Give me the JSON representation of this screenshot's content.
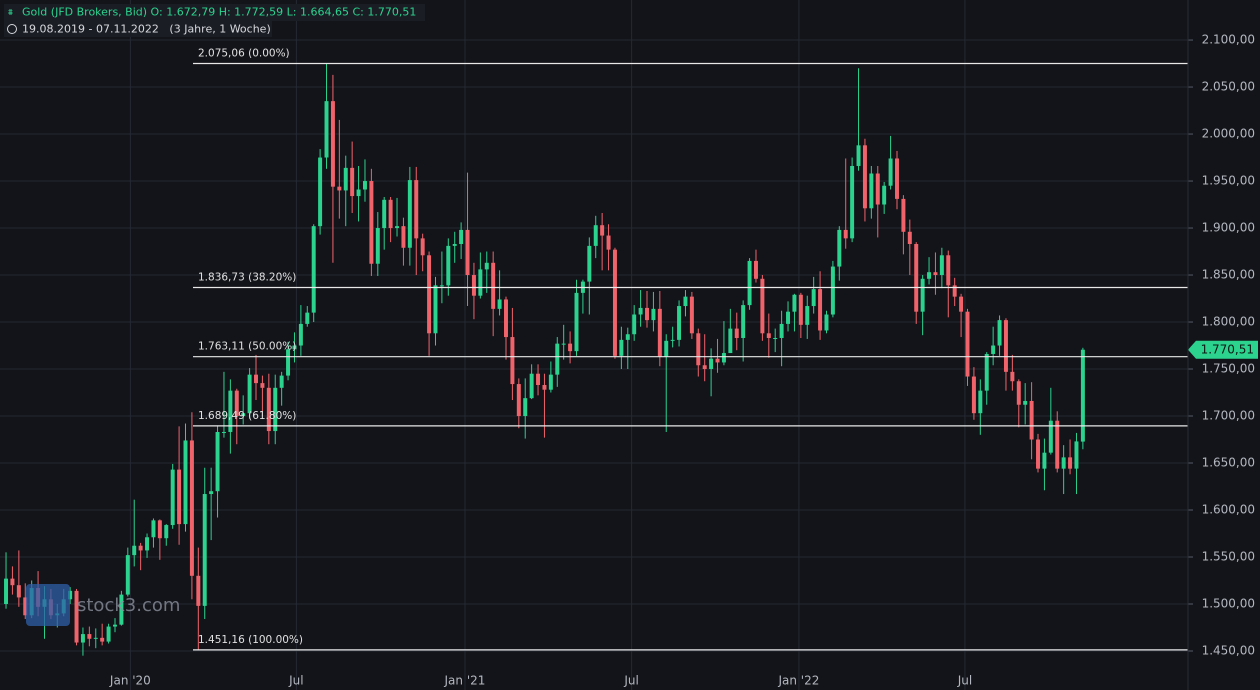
{
  "chart_data": {
    "type": "candlestick",
    "header": "Gold (JFD Brokers, Bid)  O: 1.672,79  H: 1.772,59  L: 1.664,65  C: 1.770,51",
    "period": "19.08.2019 - 07.11.2022   (3 Jahre, 1 Woche)",
    "watermark": "stock3.com",
    "up_color": "#2bd38f",
    "down_color": "#f0636b",
    "grid": true,
    "xlim": [
      -0.94,
      184.4
    ],
    "ylim": [
      1408.5,
      2142.6
    ],
    "xticks": [
      {
        "value": 19.4,
        "label": "Jan '20"
      },
      {
        "value": 45.3,
        "label": "Jul"
      },
      {
        "value": 71.6,
        "label": "Jan '21"
      },
      {
        "value": 97.6,
        "label": "Jul"
      },
      {
        "value": 123.7,
        "label": "Jan '22"
      },
      {
        "value": 149.6,
        "label": "Jul"
      }
    ],
    "yticks": [
      {
        "value": 1450,
        "label": "1.450,00"
      },
      {
        "value": 1500,
        "label": "1.500,00"
      },
      {
        "value": 1550,
        "label": "1.550,00"
      },
      {
        "value": 1600,
        "label": "1.600,00"
      },
      {
        "value": 1650,
        "label": "1.650,00"
      },
      {
        "value": 1700,
        "label": "1.700,00"
      },
      {
        "value": 1750,
        "label": "1.750,00"
      },
      {
        "value": 1800,
        "label": "1.800,00"
      },
      {
        "value": 1850,
        "label": "1.850,00"
      },
      {
        "value": 1900,
        "label": "1.900,00"
      },
      {
        "value": 1950,
        "label": "1.950,00"
      },
      {
        "value": 2000,
        "label": "2.000,00"
      },
      {
        "value": 2050,
        "label": "2.050,00"
      },
      {
        "value": 2100,
        "label": "2.100,00"
      }
    ],
    "fib_levels": [
      {
        "value": 2075.06,
        "label": "2.075,06 (0.00%)"
      },
      {
        "value": 1836.73,
        "label": "1.836,73 (38.20%)"
      },
      {
        "value": 1763.11,
        "label": "1.763,11 (50.00%)"
      },
      {
        "value": 1689.49,
        "label": "1.689,49 (61.80%)"
      },
      {
        "value": 1451.16,
        "label": "1.451,16 (100.00%)"
      }
    ],
    "last_price": {
      "value": 1770.51,
      "label": "1.770,51"
    },
    "open": [
      1500,
      1527,
      1520,
      1507,
      1488,
      1517,
      1497,
      1505,
      1488,
      1490,
      1505,
      1514,
      1459,
      1468,
      1463,
      1464,
      1460,
      1476,
      1478,
      1510,
      1552,
      1562,
      1557,
      1571,
      1589,
      1570,
      1584,
      1643,
      1585,
      1674,
      1530,
      1498,
      1617,
      1620,
      1683,
      1683,
      1727,
      1700,
      1703,
      1744,
      1735,
      1730,
      1684,
      1730,
      1743,
      1771,
      1775,
      1798,
      1810,
      1902,
      1975,
      2035,
      1944,
      1940,
      1964,
      1934,
      1941,
      1950,
      1862,
      1900,
      1930,
      1900,
      1902,
      1879,
      1951,
      1889,
      1871,
      1788,
      1839,
      1839,
      1881,
      1883,
      1898,
      1850,
      1828,
      1856,
      1863,
      1814,
      1824,
      1784,
      1734,
      1700,
      1719,
      1745,
      1733,
      1728,
      1744,
      1777,
      1777,
      1769,
      1831,
      1843,
      1881,
      1903,
      1892,
      1877,
      1764,
      1781,
      1787,
      1808,
      1815,
      1802,
      1814,
      1763,
      1780,
      1781,
      1817,
      1827,
      1788,
      1754,
      1750,
      1761,
      1757,
      1767,
      1793,
      1783,
      1818,
      1865,
      1846,
      1788,
      1783,
      1783,
      1798,
      1811,
      1829,
      1797,
      1817,
      1835,
      1791,
      1808,
      1859,
      1898,
      1889,
      1966,
      1988,
      1921,
      1958,
      1925,
      1945,
      1974,
      1931,
      1896,
      1883,
      1811,
      1846,
      1853,
      1850,
      1871,
      1839,
      1827,
      1811,
      1742,
      1703,
      1727,
      1766,
      1775,
      1802,
      1747,
      1737,
      1712,
      1716,
      1675,
      1644,
      1661,
      1695,
      1644,
      1656,
      1644,
      1672.79
    ],
    "high": [
      1555,
      1540,
      1557,
      1522,
      1525,
      1535,
      1519,
      1516,
      1500,
      1516,
      1518,
      1516,
      1475,
      1476,
      1474,
      1479,
      1479,
      1485,
      1514,
      1560,
      1611,
      1565,
      1575,
      1591,
      1590,
      1585,
      1649,
      1689,
      1692,
      1704,
      1560,
      1645,
      1645,
      1690,
      1747,
      1739,
      1729,
      1722,
      1751,
      1765,
      1743,
      1745,
      1744,
      1747,
      1779,
      1789,
      1818,
      1817,
      1904,
      1984,
      2075,
      2063,
      2015,
      1977,
      1992,
      1966,
      1973,
      1963,
      1917,
      1933,
      1933,
      1932,
      1911,
      1965,
      1965,
      1894,
      1875,
      1848,
      1875,
      1889,
      1896,
      1906,
      1959,
      1863,
      1874,
      1875,
      1875,
      1855,
      1827,
      1815,
      1740,
      1740,
      1755,
      1755,
      1745,
      1758,
      1784,
      1797,
      1790,
      1845,
      1845,
      1890,
      1913,
      1916,
      1904,
      1879,
      1795,
      1794,
      1818,
      1834,
      1833,
      1832,
      1833,
      1787,
      1795,
      1823,
      1834,
      1832,
      1793,
      1787,
      1772,
      1782,
      1801,
      1814,
      1810,
      1823,
      1868,
      1877,
      1850,
      1809,
      1793,
      1812,
      1822,
      1830,
      1831,
      1828,
      1848,
      1854,
      1812,
      1865,
      1902,
      1974,
      1975,
      2070,
      1995,
      1966,
      1966,
      1949,
      1998,
      1982,
      1935,
      1909,
      1885,
      1850,
      1869,
      1874,
      1879,
      1876,
      1847,
      1830,
      1814,
      1752,
      1739,
      1768,
      1795,
      1807,
      1804,
      1765,
      1739,
      1735,
      1736,
      1681,
      1676,
      1730,
      1705,
      1669,
      1675,
      1682,
      1772.59
    ],
    "low": [
      1495,
      1510,
      1497,
      1484,
      1485,
      1487,
      1463,
      1484,
      1475,
      1487,
      1500,
      1456,
      1445,
      1455,
      1453,
      1456,
      1458,
      1470,
      1477,
      1508,
      1540,
      1536,
      1549,
      1560,
      1547,
      1562,
      1580,
      1563,
      1577,
      1505,
      1451,
      1484,
      1568,
      1592,
      1677,
      1660,
      1670,
      1691,
      1697,
      1717,
      1700,
      1670,
      1670,
      1711,
      1738,
      1757,
      1764,
      1795,
      1800,
      1893,
      1963,
      1863,
      1910,
      1902,
      1916,
      1907,
      1928,
      1849,
      1849,
      1877,
      1885,
      1891,
      1860,
      1860,
      1850,
      1854,
      1764,
      1775,
      1820,
      1828,
      1863,
      1867,
      1817,
      1803,
      1825,
      1831,
      1785,
      1807,
      1760,
      1717,
      1687,
      1676,
      1718,
      1722,
      1677,
      1725,
      1731,
      1760,
      1756,
      1764,
      1809,
      1808,
      1868,
      1855,
      1855,
      1761,
      1750,
      1750,
      1780,
      1795,
      1794,
      1790,
      1753,
      1683,
      1773,
      1774,
      1806,
      1782,
      1742,
      1737,
      1721,
      1746,
      1754,
      1767,
      1770,
      1758,
      1813,
      1842,
      1780,
      1762,
      1768,
      1753,
      1790,
      1790,
      1783,
      1782,
      1809,
      1781,
      1788,
      1805,
      1844,
      1878,
      1885,
      1961,
      1907,
      1910,
      1890,
      1915,
      1941,
      1920,
      1872,
      1850,
      1798,
      1786,
      1840,
      1829,
      1836,
      1805,
      1817,
      1784,
      1732,
      1696,
      1680,
      1712,
      1754,
      1764,
      1727,
      1727,
      1688,
      1691,
      1654,
      1640,
      1621,
      1659,
      1640,
      1617,
      1638,
      1617,
      1664.65
    ],
    "close": [
      1527,
      1520,
      1507,
      1488,
      1517,
      1497,
      1505,
      1488,
      1490,
      1505,
      1514,
      1459,
      1468,
      1463,
      1464,
      1460,
      1476,
      1478,
      1510,
      1552,
      1562,
      1557,
      1571,
      1589,
      1570,
      1584,
      1643,
      1585,
      1674,
      1530,
      1498,
      1617,
      1620,
      1683,
      1683,
      1727,
      1700,
      1703,
      1744,
      1735,
      1730,
      1684,
      1730,
      1743,
      1771,
      1775,
      1798,
      1810,
      1902,
      1975,
      2035,
      1944,
      1940,
      1964,
      1934,
      1941,
      1950,
      1862,
      1900,
      1930,
      1900,
      1902,
      1879,
      1951,
      1889,
      1871,
      1788,
      1839,
      1839,
      1881,
      1883,
      1898,
      1850,
      1828,
      1856,
      1863,
      1814,
      1824,
      1784,
      1734,
      1700,
      1719,
      1745,
      1733,
      1728,
      1744,
      1777,
      1777,
      1769,
      1831,
      1843,
      1881,
      1903,
      1892,
      1877,
      1764,
      1781,
      1787,
      1808,
      1815,
      1802,
      1814,
      1763,
      1780,
      1781,
      1817,
      1827,
      1788,
      1754,
      1750,
      1761,
      1757,
      1767,
      1793,
      1783,
      1818,
      1865,
      1846,
      1788,
      1783,
      1783,
      1798,
      1811,
      1829,
      1797,
      1817,
      1835,
      1791,
      1808,
      1859,
      1898,
      1889,
      1966,
      1988,
      1921,
      1958,
      1925,
      1945,
      1974,
      1931,
      1896,
      1883,
      1811,
      1846,
      1853,
      1850,
      1871,
      1839,
      1827,
      1811,
      1742,
      1703,
      1727,
      1766,
      1775,
      1802,
      1747,
      1737,
      1712,
      1716,
      1675,
      1644,
      1661,
      1695,
      1644,
      1656,
      1644,
      1673,
      1770.51
    ]
  }
}
